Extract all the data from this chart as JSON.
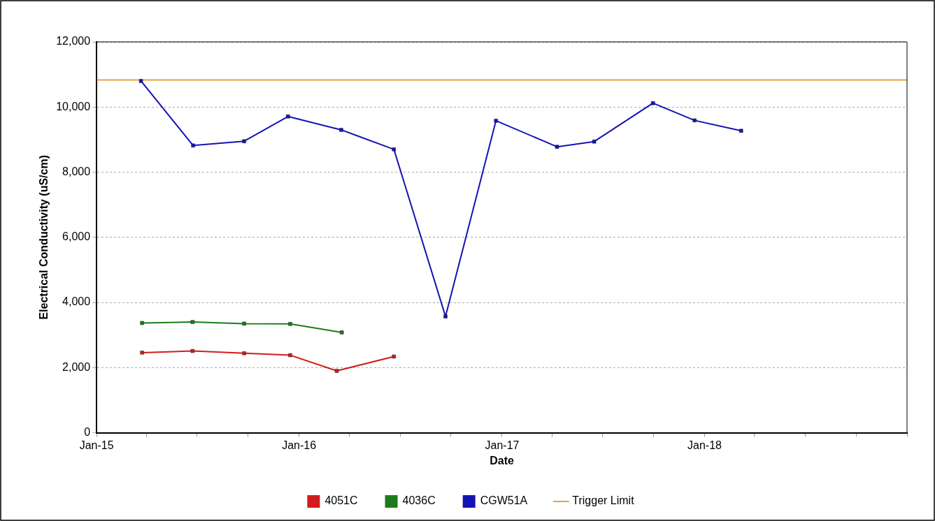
{
  "chart_data": {
    "type": "line",
    "xlabel": "Date",
    "ylabel": "Electrical Conductivity (uS/cm)",
    "xlim": [
      "2015-01-01",
      "2019-01-01"
    ],
    "xticks": [
      {
        "value": "2015-01-01",
        "label": "Jan-15"
      },
      {
        "value": "2015-04-01",
        "label": null
      },
      {
        "value": "2015-07-01",
        "label": null
      },
      {
        "value": "2015-10-01",
        "label": null
      },
      {
        "value": "2016-01-01",
        "label": "Jan-16"
      },
      {
        "value": "2016-04-01",
        "label": null
      },
      {
        "value": "2016-07-01",
        "label": null
      },
      {
        "value": "2016-10-01",
        "label": null
      },
      {
        "value": "2017-01-01",
        "label": "Jan-17"
      },
      {
        "value": "2017-04-01",
        "label": null
      },
      {
        "value": "2017-07-01",
        "label": null
      },
      {
        "value": "2017-10-01",
        "label": null
      },
      {
        "value": "2018-01-01",
        "label": "Jan-18"
      },
      {
        "value": "2018-04-01",
        "label": null
      },
      {
        "value": "2018-07-01",
        "label": null
      },
      {
        "value": "2018-10-01",
        "label": null
      },
      {
        "value": "2019-01-01",
        "label": null
      }
    ],
    "ylim": [
      0,
      12000
    ],
    "yticks": [
      {
        "value": 0,
        "label": "0"
      },
      {
        "value": 2000,
        "label": "2,000"
      },
      {
        "value": 4000,
        "label": "4,000"
      },
      {
        "value": 6000,
        "label": "6,000"
      },
      {
        "value": 8000,
        "label": "8,000"
      },
      {
        "value": 10000,
        "label": "10,000"
      },
      {
        "value": 12000,
        "label": "12,000"
      }
    ],
    "grid": "y",
    "legend": "bottom",
    "marker": "square",
    "line_style": "solid",
    "series": [
      {
        "name": "4051C",
        "color": "#d01c1c",
        "x": [
          "2015-03-24",
          "2015-06-23",
          "2015-09-24",
          "2015-12-16",
          "2016-03-09",
          "2016-06-20"
        ],
        "values": [
          2460,
          2510,
          2440,
          2380,
          1900,
          2340
        ]
      },
      {
        "name": "4036C",
        "color": "#1c7c1c",
        "x": [
          "2015-03-24",
          "2015-06-23",
          "2015-09-24",
          "2015-12-16",
          "2016-03-18"
        ],
        "values": [
          3370,
          3400,
          3350,
          3340,
          3080
        ]
      },
      {
        "name": "CGW51A",
        "color": "#1414b4",
        "x": [
          "2015-03-22",
          "2015-06-24",
          "2015-09-24",
          "2015-12-12",
          "2016-03-17",
          "2016-06-20",
          "2016-09-21",
          "2016-12-21",
          "2017-04-10",
          "2017-06-16",
          "2017-09-30",
          "2017-12-14",
          "2018-03-08"
        ],
        "values": [
          10800,
          8820,
          8950,
          9710,
          9300,
          8700,
          3570,
          9580,
          8780,
          8940,
          10120,
          9590,
          9270
        ]
      }
    ],
    "ref_lines": [
      {
        "axis": "y",
        "value": 10830,
        "label": "Trigger Limit",
        "color": "#e8a040",
        "line_style": "solid"
      }
    ]
  }
}
